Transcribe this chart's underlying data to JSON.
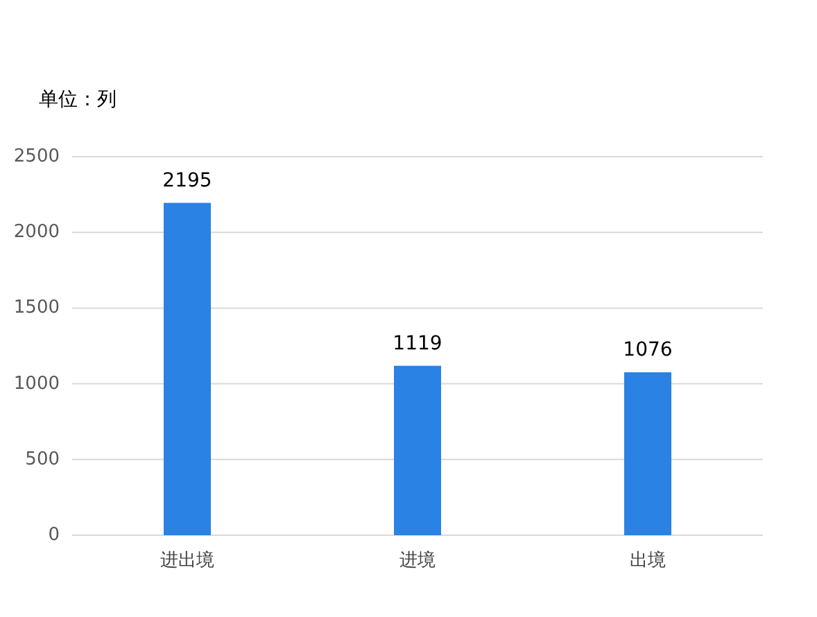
{
  "chart_data": {
    "type": "bar",
    "annotations": [
      "单位：列"
    ],
    "categories": [
      "进出境",
      "进境",
      "出境"
    ],
    "values": [
      2195,
      1119,
      1076
    ],
    "color": "#2a82e4",
    "ylim": [
      0,
      2500
    ],
    "yticks": [
      0,
      500,
      1000,
      1500,
      2000,
      2500
    ],
    "grid": "y",
    "data_labels": true
  }
}
